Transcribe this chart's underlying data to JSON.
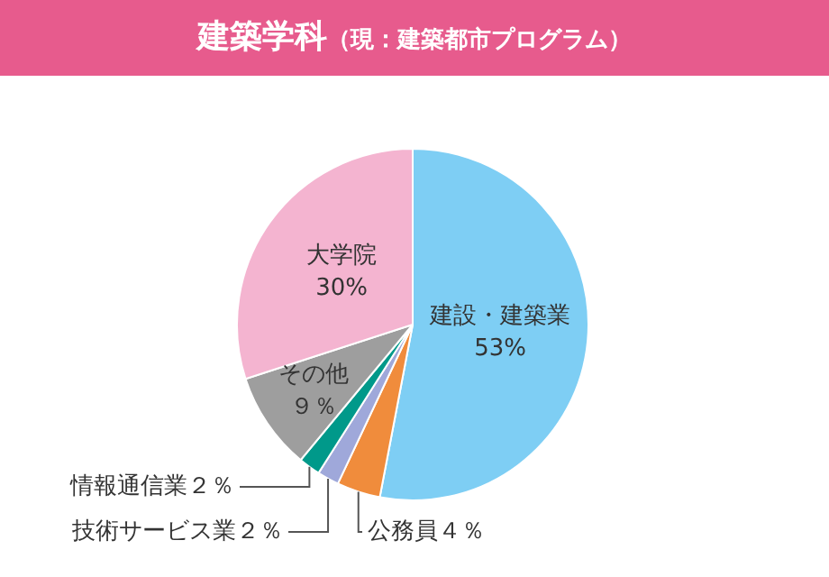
{
  "chart_data": {
    "type": "pie",
    "title": "建築学科",
    "subtitle": "（現：建築都市プログラム）",
    "categories": [
      "建設・建築業",
      "公務員",
      "技術サービス業",
      "情報通信業",
      "その他",
      "大学院"
    ],
    "values": [
      53,
      4,
      2,
      2,
      9,
      30
    ],
    "value_labels": [
      "53%",
      "４％",
      "２％",
      "２％",
      "９％",
      "30%"
    ],
    "colors": [
      "#7ecef4",
      "#f08c3c",
      "#9fa8da",
      "#00998a",
      "#9e9e9e",
      "#f4b4d0"
    ],
    "legend": false
  }
}
